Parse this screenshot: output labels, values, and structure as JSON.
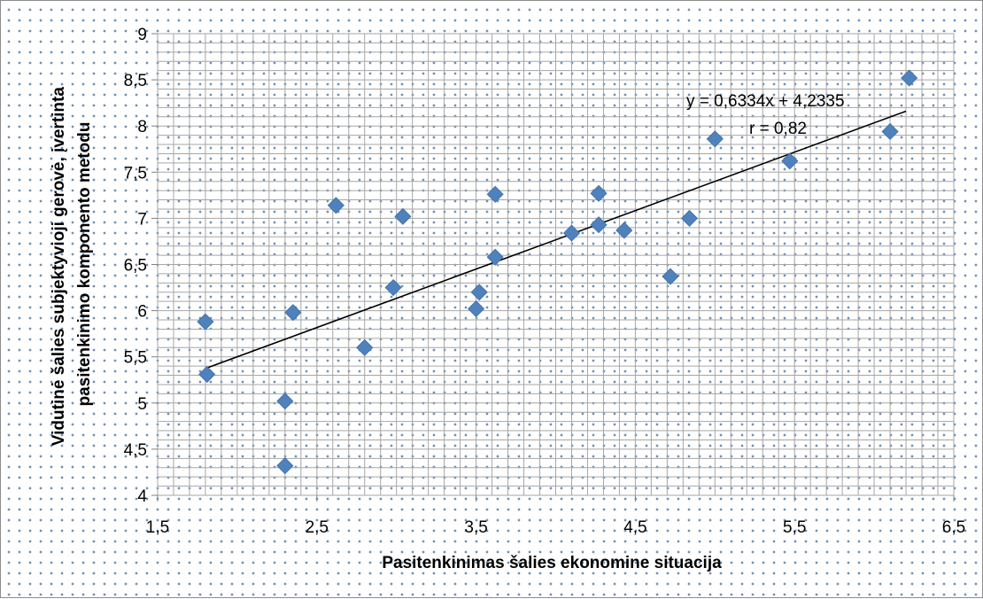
{
  "chart_data": {
    "type": "scatter",
    "xlabel": "Pasitenkinimas šalies ekonomine situacija",
    "ylabel": [
      "Vidutinė šalies subjektyvioji gerovė, įvertinta",
      "pasitenkinimo komponento metodu"
    ],
    "xlim": [
      1.5,
      6.5
    ],
    "ylim": [
      4,
      9
    ],
    "xticks": [
      1.5,
      2.5,
      3.5,
      4.5,
      5.5,
      6.5
    ],
    "xtick_labels": [
      "1,5",
      "2,5",
      "3,5",
      "4,5",
      "5,5",
      "6,5"
    ],
    "yticks": [
      4,
      4.5,
      5,
      5.5,
      6,
      6.5,
      7,
      7.5,
      8,
      8.5,
      9
    ],
    "ytick_labels": [
      "4",
      "4,5",
      "5",
      "5,5",
      "6",
      "6,5",
      "7",
      "7,5",
      "8",
      "8,5",
      "9"
    ],
    "grid": true,
    "legend": "none",
    "colors": {
      "marker": "#4f81bd",
      "trendline": "#000000",
      "grid": "#a6a6a6",
      "dots": "#6e90b8"
    },
    "points": [
      {
        "x": 1.8,
        "y": 5.88
      },
      {
        "x": 1.81,
        "y": 5.31
      },
      {
        "x": 2.3,
        "y": 5.02
      },
      {
        "x": 2.3,
        "y": 4.32
      },
      {
        "x": 2.35,
        "y": 5.98
      },
      {
        "x": 2.62,
        "y": 7.14
      },
      {
        "x": 2.8,
        "y": 5.6
      },
      {
        "x": 2.98,
        "y": 6.25
      },
      {
        "x": 3.04,
        "y": 7.02
      },
      {
        "x": 3.5,
        "y": 6.02
      },
      {
        "x": 3.52,
        "y": 6.2
      },
      {
        "x": 3.62,
        "y": 6.58
      },
      {
        "x": 3.62,
        "y": 7.26
      },
      {
        "x": 4.1,
        "y": 6.84
      },
      {
        "x": 4.27,
        "y": 6.93
      },
      {
        "x": 4.27,
        "y": 7.27
      },
      {
        "x": 4.43,
        "y": 6.87
      },
      {
        "x": 4.72,
        "y": 6.37
      },
      {
        "x": 4.84,
        "y": 7.0
      },
      {
        "x": 5.0,
        "y": 7.86
      },
      {
        "x": 5.47,
        "y": 7.62
      },
      {
        "x": 6.1,
        "y": 7.94
      },
      {
        "x": 6.22,
        "y": 8.52
      }
    ],
    "trendline": {
      "slope": 0.6334,
      "intercept": 4.2335,
      "x_start": 1.8,
      "x_end": 6.2,
      "equation_label": "y = 0,6334x + 4,2335",
      "r_label": "r = 0,82"
    }
  }
}
